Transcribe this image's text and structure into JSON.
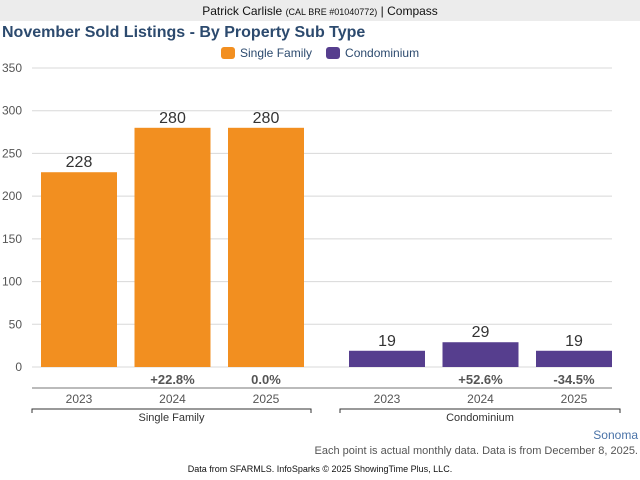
{
  "header": {
    "agent_name": "Patrick Carlisle",
    "license": "(CAL BRE #01040772)",
    "separator": "|",
    "company": "Compass"
  },
  "colors": {
    "single_family": "#f28f20",
    "condominium": "#563e8e",
    "title": "#2c4a6e"
  },
  "chart_data": {
    "type": "bar",
    "title": "November Sold Listings - By Property Sub Type",
    "xlabel": "",
    "ylabel": "",
    "ylim": [
      0,
      350
    ],
    "yticks": [
      0,
      50,
      100,
      150,
      200,
      250,
      300,
      350
    ],
    "grid": true,
    "legend_position": "top-center",
    "legend": [
      "Single Family",
      "Condominium"
    ],
    "groups": [
      {
        "name": "Single Family",
        "categories": [
          "2023",
          "2024",
          "2025"
        ],
        "values": [
          228,
          280,
          280
        ],
        "changes": [
          "",
          "+22.8%",
          "0.0%"
        ]
      },
      {
        "name": "Condominium",
        "categories": [
          "2023",
          "2024",
          "2025"
        ],
        "values": [
          19,
          29,
          19
        ],
        "changes": [
          "",
          "+52.6%",
          "-34.5%"
        ]
      }
    ]
  },
  "footer": {
    "region": "Sonoma",
    "note": "Each point is actual monthly data. Data is from December 8, 2025.",
    "credit": "Data from SFARMLS. InfoSparks © 2025 ShowingTime Plus, LLC."
  }
}
